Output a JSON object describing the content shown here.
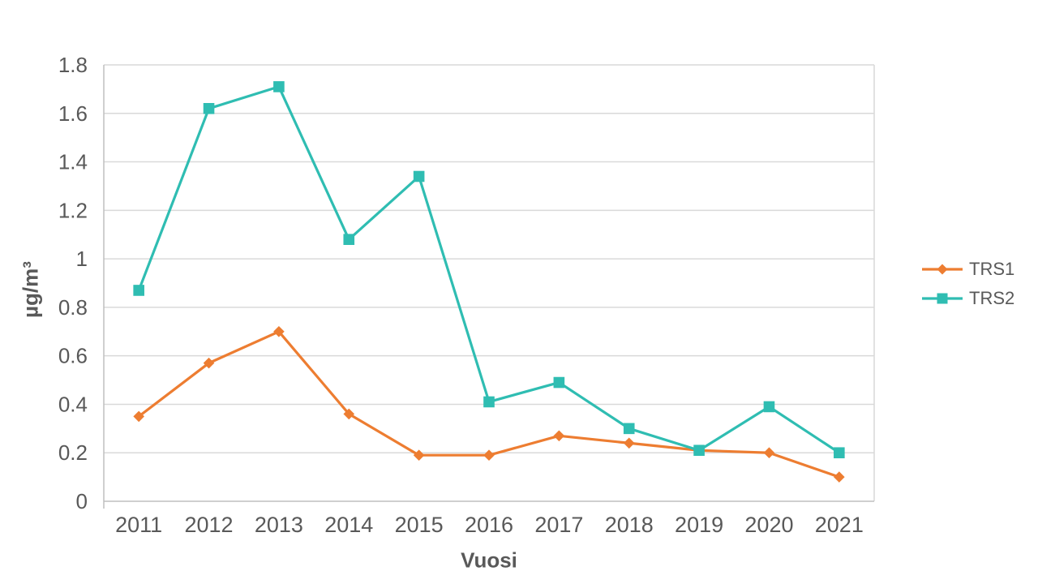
{
  "chart_data": {
    "type": "line",
    "title": "",
    "xlabel": "Vuosi",
    "ylabel": "µg/m³",
    "categories": [
      "2011",
      "2012",
      "2013",
      "2014",
      "2015",
      "2016",
      "2017",
      "2018",
      "2019",
      "2020",
      "2021"
    ],
    "series": [
      {
        "name": "TRS1",
        "marker": "diamond",
        "color": "#ED7D31",
        "values": [
          0.35,
          0.57,
          0.7,
          0.36,
          0.19,
          0.19,
          0.27,
          0.24,
          0.21,
          0.2,
          0.1
        ]
      },
      {
        "name": "TRS2",
        "marker": "square",
        "color": "#2FBDB2",
        "values": [
          0.87,
          1.62,
          1.71,
          1.08,
          1.34,
          0.41,
          0.49,
          0.3,
          0.21,
          0.39,
          0.2
        ]
      }
    ],
    "ylim": [
      0,
      1.8
    ],
    "y_tick_labels": [
      "0",
      "0.2",
      "0.4",
      "0.6",
      "0.8",
      "1",
      "1.2",
      "1.4",
      "1.6",
      "1.8"
    ],
    "y_tick_step": 0.2,
    "grid": true,
    "legend_position": "right",
    "colors": {
      "grid": "#D9D9D9",
      "axis": "#BFBFBF",
      "text": "#595959",
      "background": "#FFFFFF"
    }
  }
}
